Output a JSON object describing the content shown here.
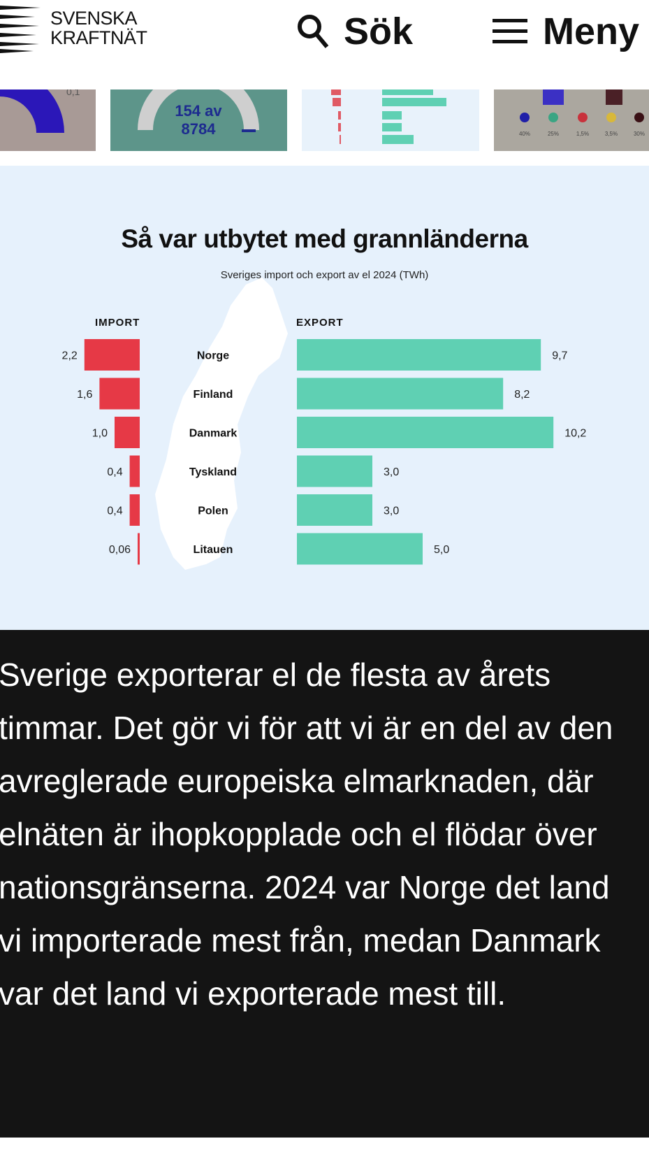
{
  "header": {
    "logo_line1": "SVENSKA",
    "logo_line2": "KRAFTNÄT",
    "search_label": "Sök",
    "menu_label": "Meny",
    "search_icon": "search-icon",
    "menu_icon": "hamburger-icon"
  },
  "thumbnails": [
    {
      "text": "0,1",
      "bg": "#a89a96"
    },
    {
      "text_line1": "154 av",
      "text_line2": "8784",
      "bg": "#5d958a"
    },
    {
      "text": "",
      "bg": "#e8f2fb"
    },
    {
      "legend": [
        "40%",
        "25%",
        "1,5%",
        "3,5%",
        "30%"
      ],
      "bg": "#aba79f"
    }
  ],
  "chart_data": {
    "type": "bar",
    "title": "Så var utbytet med grannländerna",
    "subtitle": "Sveriges import och export av el 2024 (TWh)",
    "categories": [
      "Norge",
      "Finland",
      "Danmark",
      "Tyskland",
      "Polen",
      "Litauen"
    ],
    "series": [
      {
        "name": "IMPORT",
        "values": [
          2.2,
          1.6,
          1.0,
          0.4,
          0.4,
          0.06
        ],
        "labels": [
          "2,2",
          "1,6",
          "1,0",
          "0,4",
          "0,4",
          "0,06"
        ],
        "color": "#e63946"
      },
      {
        "name": "EXPORT",
        "values": [
          9.7,
          8.2,
          10.2,
          3.0,
          3.0,
          5.0
        ],
        "labels": [
          "9,7",
          "8,2",
          "10,2",
          "3,0",
          "3,0",
          "5,0"
        ],
        "color": "#5fd0b3"
      }
    ]
  },
  "body_text": "Sverige exporterar el de flesta av årets timmar. Det gör vi för att vi är en del av den avreglerade europeiska elmarknaden, där elnäten är ihopkopplade och el flödar över nationsgränserna. 2024 var Norge det land vi importerade mest från, medan Danmark var det land vi exporterade mest till."
}
